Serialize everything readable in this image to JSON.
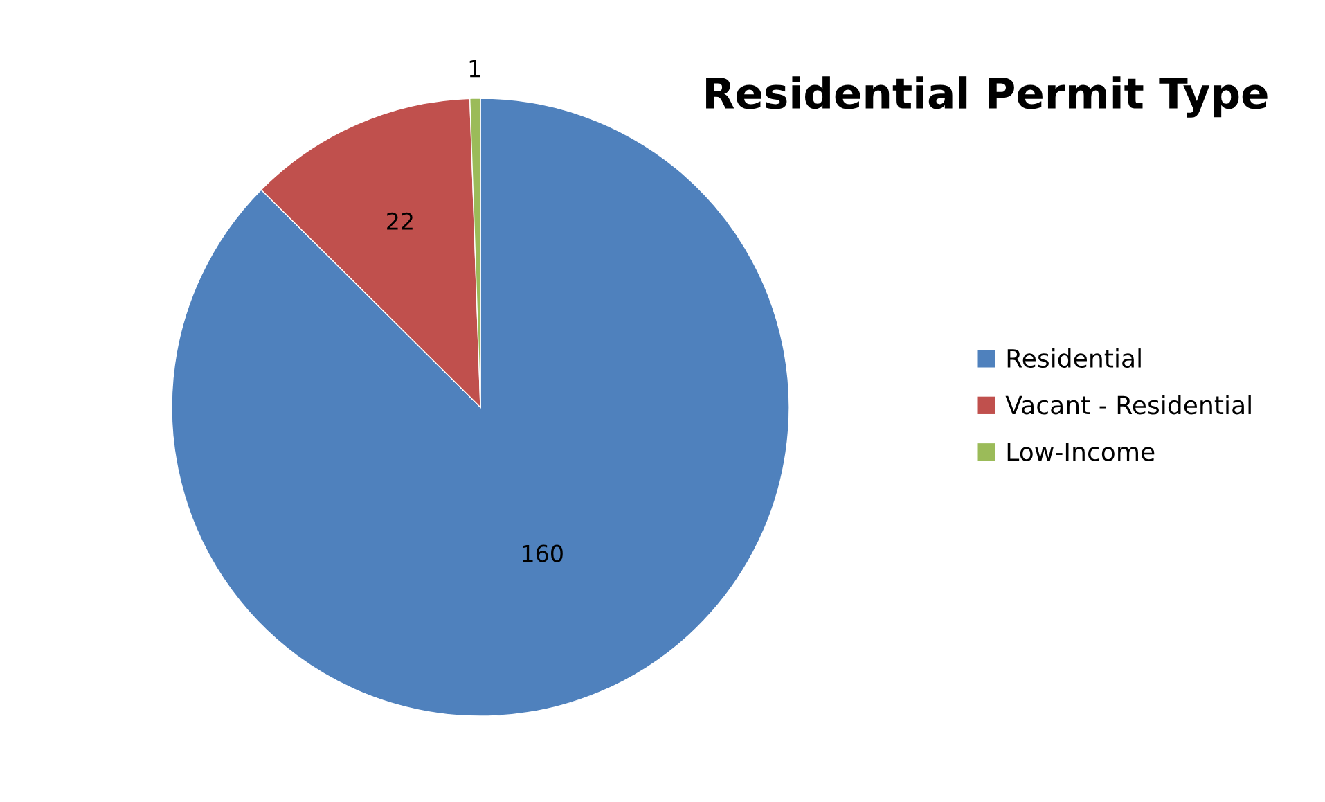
{
  "chart_data": {
    "type": "pie",
    "title": "Residential Permit Type",
    "categories": [
      "Residential",
      "Vacant - Residential",
      "Low-Income"
    ],
    "values": [
      160,
      22,
      1
    ],
    "colors": [
      "#4f81bd",
      "#c0504d",
      "#9bbb59"
    ],
    "data_labels": true,
    "legend": "right"
  }
}
